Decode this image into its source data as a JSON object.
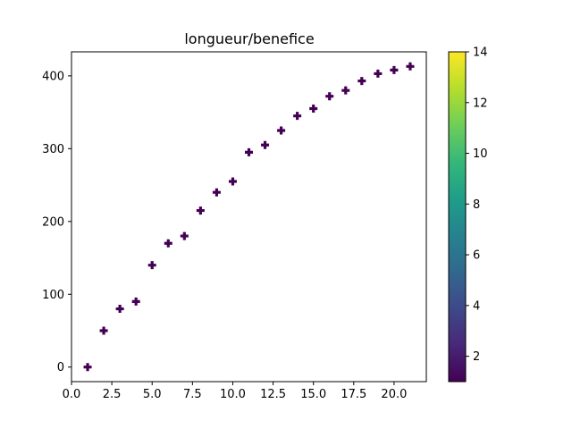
{
  "chart_data": {
    "type": "scatter",
    "title": "longueur/benefice",
    "xlabel": "",
    "ylabel": "",
    "marker": "plus-filled",
    "marker_color": "#440154",
    "x": [
      1,
      2,
      3,
      4,
      5,
      6,
      7,
      8,
      9,
      10,
      11,
      12,
      13,
      14,
      15,
      16,
      17,
      18,
      19,
      20,
      21
    ],
    "y": [
      0,
      50,
      80,
      90,
      140,
      170,
      180,
      215,
      240,
      255,
      295,
      305,
      325,
      345,
      355,
      372,
      380,
      393,
      403,
      408,
      413
    ],
    "xlim": [
      0,
      22
    ],
    "ylim": [
      -20,
      433
    ],
    "xticks": [
      "0.0",
      "2.5",
      "5.0",
      "7.5",
      "10.0",
      "12.5",
      "15.0",
      "17.5",
      "20.0"
    ],
    "xtick_values": [
      0,
      2.5,
      5,
      7.5,
      10,
      12.5,
      15,
      17.5,
      20
    ],
    "yticks": [
      "0",
      "100",
      "200",
      "300",
      "400"
    ],
    "ytick_values": [
      0,
      100,
      200,
      300,
      400
    ],
    "grid": false,
    "colorbar": {
      "colormap": "viridis",
      "range": [
        1,
        14
      ],
      "ticks": [
        "2",
        "4",
        "6",
        "8",
        "10",
        "12",
        "14"
      ],
      "tick_values": [
        2,
        4,
        6,
        8,
        10,
        12,
        14
      ],
      "colors": [
        "#440154",
        "#482878",
        "#3e4989",
        "#31688e",
        "#26828e",
        "#1f9e89",
        "#35b779",
        "#6ece58",
        "#b5de2b",
        "#fde725"
      ]
    }
  }
}
